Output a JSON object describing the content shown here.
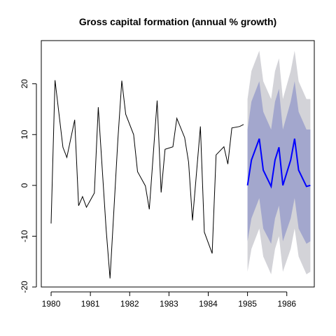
{
  "chart_data": {
    "type": "line",
    "title": "Gross capital formation (annual % growth)",
    "xlabel": "",
    "ylabel": "",
    "xlim": [
      1979.75,
      1986.7
    ],
    "ylim": [
      -20,
      28.5
    ],
    "x_ticks": [
      1980,
      1981,
      1982,
      1983,
      1984,
      1985,
      1986
    ],
    "x_tick_labels": [
      "1980",
      "1981",
      "1982",
      "1983",
      "1984",
      "1985",
      "1986"
    ],
    "y_ticks": [
      -20,
      -10,
      0,
      10,
      20
    ],
    "y_tick_labels": [
      "-20",
      "-10",
      "0",
      "10",
      "20"
    ],
    "grid": false,
    "colors": {
      "history": "#000000",
      "forecast": "#0000ff",
      "band_95": "#d3d3d8",
      "band_80": "#a3a7cd"
    },
    "history": {
      "x": [
        1980.0,
        1980.1,
        1980.3,
        1980.4,
        1980.6,
        1980.7,
        1980.8,
        1980.9,
        1981.1,
        1981.2,
        1981.4,
        1981.5,
        1981.7,
        1981.8,
        1981.9,
        1982.1,
        1982.2,
        1982.4,
        1982.5,
        1982.7,
        1982.8,
        1982.9,
        1983.1,
        1983.2,
        1983.4,
        1983.5,
        1983.6,
        1983.8,
        1983.9,
        1984.1,
        1984.2,
        1984.4,
        1984.5,
        1984.6,
        1984.8,
        1984.9
      ],
      "y": [
        -7.5,
        20.7,
        7.5,
        5.5,
        12.9,
        -4.0,
        -2.2,
        -4.3,
        -1.5,
        15.4,
        -8.6,
        -18.3,
        9.0,
        20.6,
        14.0,
        10.0,
        2.7,
        -0.1,
        -4.7,
        16.7,
        -1.4,
        7.1,
        7.6,
        13.2,
        9.4,
        4.6,
        -6.9,
        11.6,
        -9.2,
        -13.4,
        6.0,
        7.6,
        4.2,
        11.3,
        11.6,
        12.0
      ]
    },
    "forecast": {
      "x": [
        1985.0,
        1985.1,
        1985.3,
        1985.4,
        1985.6,
        1985.7,
        1985.8,
        1985.9,
        1986.1,
        1986.2,
        1986.3,
        1986.5,
        1986.6
      ],
      "y": [
        0.0,
        5.0,
        9.2,
        3.0,
        -0.2,
        5.0,
        7.5,
        0.0,
        5.0,
        9.2,
        3.0,
        -0.2,
        0.0
      ],
      "lower_80": [
        -11.0,
        -6.5,
        -2.5,
        -8.5,
        -11.5,
        -6.5,
        -4.0,
        -11.0,
        -6.5,
        -2.5,
        -8.5,
        -11.5,
        -11.0
      ],
      "upper_80": [
        11.0,
        16.5,
        20.5,
        14.5,
        11.0,
        16.5,
        19.0,
        11.0,
        16.5,
        20.5,
        14.5,
        11.0,
        11.0
      ],
      "lower_95": [
        -17.0,
        -12.5,
        -8.5,
        -14.0,
        -17.5,
        -12.5,
        -10.0,
        -17.0,
        -12.5,
        -8.5,
        -14.0,
        -17.5,
        -17.0
      ],
      "upper_95": [
        17.0,
        22.5,
        26.5,
        20.5,
        17.0,
        22.5,
        25.0,
        17.0,
        22.5,
        26.5,
        20.5,
        17.0,
        17.0
      ]
    }
  }
}
